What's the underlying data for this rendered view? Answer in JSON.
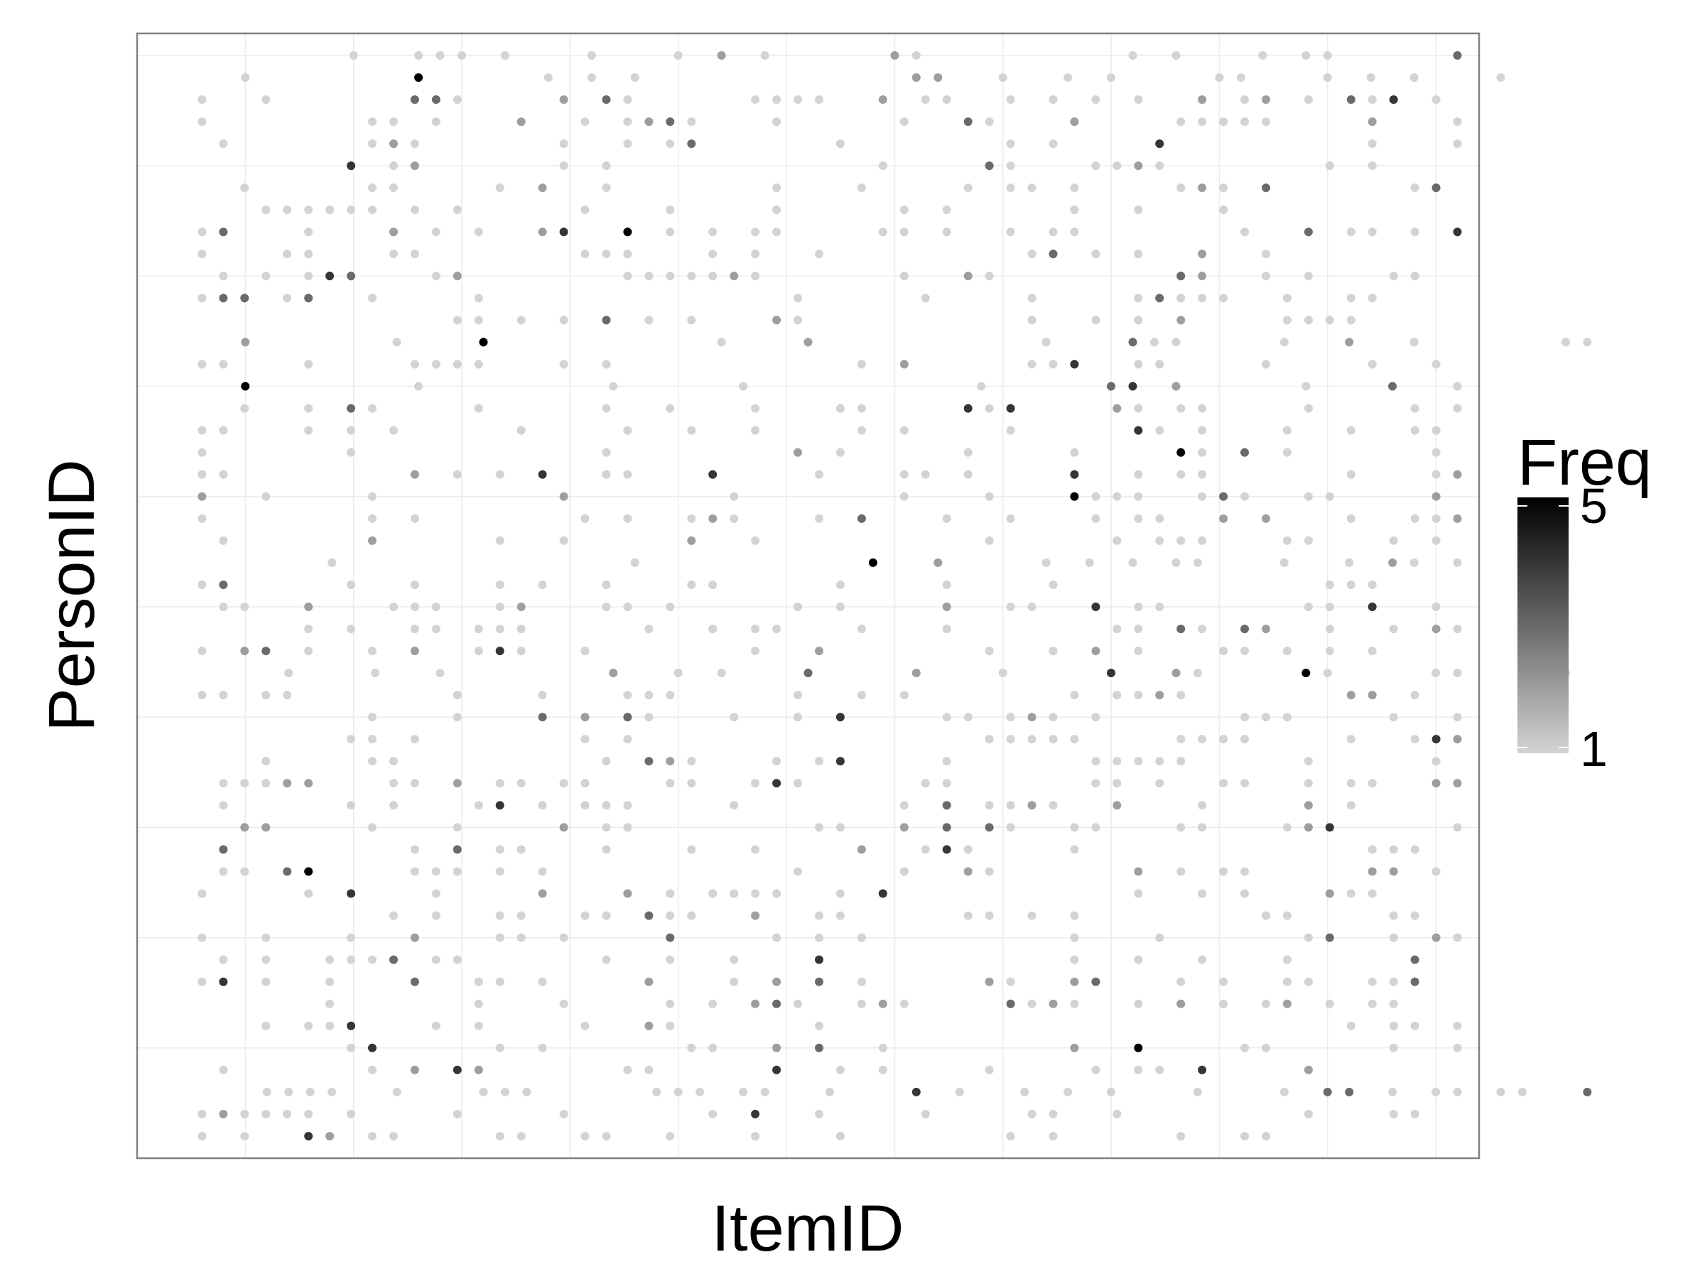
{
  "chart_data": {
    "type": "scatter",
    "title": "",
    "xlabel": "ItemID",
    "ylabel": "PersonID",
    "x_tick_labels": [],
    "y_tick_labels": [],
    "xlim": [
      0,
      62
    ],
    "ylim": [
      0,
      51
    ],
    "grid": true,
    "legend": {
      "title": "Freq",
      "placement": "right",
      "min": 1,
      "max": 5,
      "labels": [
        "5",
        "1"
      ],
      "color_low": "#d3d3d3",
      "color_high": "#000000"
    },
    "colors": {
      "panel_border": "#808080",
      "gridline": "#ebebeb",
      "background": "#ffffff"
    },
    "n_items": 60,
    "n_persons": 50,
    "density": 0.3,
    "point_rows": [
      {
        "person": 50,
        "points": [
          [
            10,
            1
          ],
          [
            13,
            1
          ],
          [
            14,
            1
          ],
          [
            15,
            1
          ],
          [
            17,
            1
          ],
          [
            21,
            1
          ],
          [
            25,
            1
          ],
          [
            27,
            2
          ],
          [
            29,
            1
          ],
          [
            35,
            2
          ],
          [
            36,
            1
          ],
          [
            46,
            1
          ],
          [
            48,
            1
          ],
          [
            52,
            1
          ],
          [
            54,
            1
          ],
          [
            55,
            1
          ],
          [
            61,
            3
          ]
        ]
      },
      {
        "person": 49,
        "points": [
          [
            5,
            1
          ],
          [
            13,
            5
          ],
          [
            19,
            1
          ],
          [
            21,
            1
          ],
          [
            23,
            1
          ],
          [
            36,
            2
          ],
          [
            37,
            2
          ],
          [
            40,
            1
          ],
          [
            43,
            1
          ],
          [
            45,
            1
          ],
          [
            50,
            1
          ],
          [
            51,
            1
          ],
          [
            55,
            1
          ],
          [
            57,
            1
          ],
          [
            59,
            1
          ],
          [
            63,
            1
          ]
        ]
      },
      {
        "person": 37,
        "points": [
          [
            5,
            2
          ],
          [
            12,
            1
          ],
          [
            16,
            5
          ],
          [
            27,
            1
          ],
          [
            31,
            2
          ],
          [
            42,
            1
          ],
          [
            46,
            3
          ],
          [
            47,
            1
          ],
          [
            48,
            1
          ],
          [
            53,
            1
          ],
          [
            56,
            2
          ],
          [
            59,
            1
          ],
          [
            66,
            1
          ],
          [
            67,
            1
          ]
        ]
      },
      {
        "person": 35,
        "points": [
          [
            5,
            5
          ],
          [
            13,
            1
          ],
          [
            22,
            1
          ],
          [
            28,
            1
          ],
          [
            39,
            1
          ],
          [
            45,
            3
          ],
          [
            46,
            4
          ],
          [
            48,
            2
          ],
          [
            54,
            1
          ],
          [
            58,
            3
          ],
          [
            61,
            1
          ]
        ]
      },
      {
        "person": 27,
        "points": [
          [
            9,
            1
          ],
          [
            23,
            1
          ],
          [
            34,
            5
          ],
          [
            37,
            2
          ],
          [
            42,
            1
          ],
          [
            44,
            1
          ],
          [
            46,
            1
          ],
          [
            48,
            1
          ],
          [
            49,
            1
          ],
          [
            53,
            1
          ],
          [
            56,
            1
          ],
          [
            58,
            2
          ],
          [
            59,
            1
          ],
          [
            61,
            1
          ]
        ]
      },
      {
        "person": 22,
        "points": [
          [
            7,
            1
          ],
          [
            11,
            1
          ],
          [
            14,
            1
          ],
          [
            22,
            2
          ],
          [
            25,
            1
          ],
          [
            27,
            1
          ],
          [
            31,
            3
          ],
          [
            36,
            2
          ],
          [
            40,
            1
          ],
          [
            45,
            4
          ],
          [
            48,
            2
          ],
          [
            49,
            1
          ],
          [
            54,
            5
          ],
          [
            55,
            1
          ],
          [
            60,
            1
          ],
          [
            61,
            1
          ],
          [
            66,
            1
          ]
        ]
      },
      {
        "person": 3,
        "points": [
          [
            6,
            1
          ],
          [
            7,
            1
          ],
          [
            8,
            1
          ],
          [
            9,
            1
          ],
          [
            12,
            1
          ],
          [
            16,
            1
          ],
          [
            17,
            1
          ],
          [
            18,
            1
          ],
          [
            24,
            1
          ],
          [
            25,
            1
          ],
          [
            26,
            1
          ],
          [
            28,
            1
          ],
          [
            29,
            1
          ],
          [
            32,
            1
          ],
          [
            36,
            4
          ],
          [
            38,
            1
          ],
          [
            41,
            1
          ],
          [
            43,
            1
          ],
          [
            45,
            1
          ],
          [
            49,
            1
          ],
          [
            53,
            1
          ],
          [
            55,
            3
          ],
          [
            56,
            3
          ],
          [
            58,
            1
          ],
          [
            60,
            1
          ],
          [
            61,
            1
          ],
          [
            63,
            1
          ],
          [
            64,
            1
          ],
          [
            67,
            3
          ]
        ]
      }
    ]
  }
}
